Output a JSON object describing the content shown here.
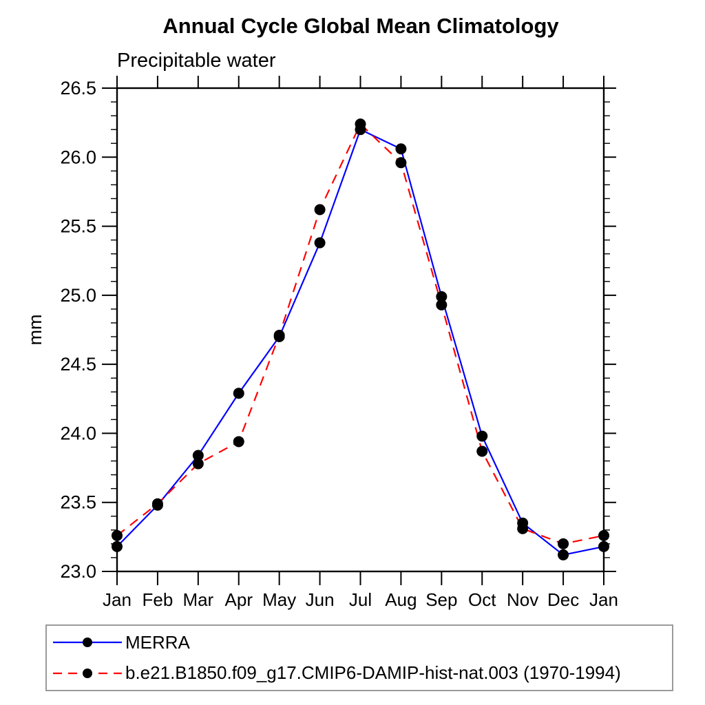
{
  "chart_data": {
    "type": "line",
    "title": "Annual Cycle Global Mean Climatology",
    "subtitle": "Precipitable water",
    "ylabel": "mm",
    "xlabel": "",
    "categories": [
      "Jan",
      "Feb",
      "Mar",
      "Apr",
      "May",
      "Jun",
      "Jul",
      "Aug",
      "Sep",
      "Oct",
      "Nov",
      "Dec",
      "Jan"
    ],
    "ylim": [
      23.0,
      26.5
    ],
    "ytick_step": 0.5,
    "yminor_step": 0.1,
    "grid": false,
    "legend_position": "bottom-left",
    "series": [
      {
        "name": "MERRA",
        "color": "#0000ff",
        "line_style": "solid",
        "marker": "circle",
        "marker_color": "#000000",
        "values": [
          23.18,
          23.48,
          23.84,
          24.29,
          24.7,
          25.38,
          26.2,
          26.06,
          24.99,
          23.98,
          23.35,
          23.12,
          23.18
        ]
      },
      {
        "name": "b.e21.B1850.f09_g17.CMIP6-DAMIP-hist-nat.003 (1970-1994)",
        "color": "#ff0000",
        "line_style": "dashed",
        "marker": "circle",
        "marker_color": "#000000",
        "values": [
          23.26,
          23.49,
          23.78,
          23.94,
          24.71,
          25.62,
          26.24,
          25.96,
          24.93,
          23.87,
          23.31,
          23.2,
          23.26
        ]
      }
    ]
  }
}
